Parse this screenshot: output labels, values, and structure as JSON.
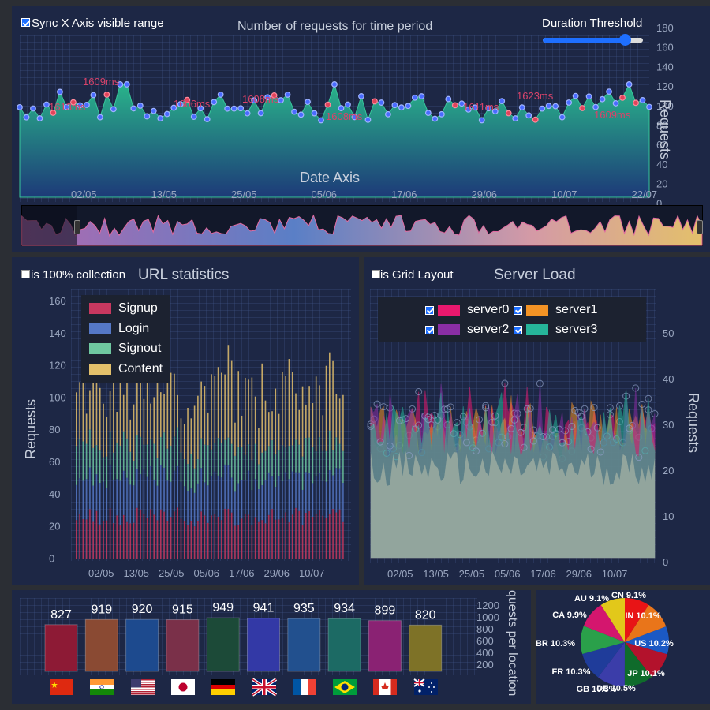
{
  "top": {
    "sync_label": "Sync X Axis visible range",
    "title": "Number of requests for time period",
    "threshold_label": "Duration Threshold",
    "threshold_value": 0.82,
    "yaxis_title": "Requests",
    "yticks": [
      "180",
      "160",
      "140",
      "120",
      "100",
      "80",
      "60",
      "40",
      "20",
      "0"
    ],
    "xaxis_title": "Date Axis",
    "xticks": [
      "02/05",
      "13/05",
      "25/05",
      "05/06",
      "17/06",
      "29/06",
      "10/07",
      "22/07"
    ],
    "annotations": [
      "1609ms",
      "1613ms",
      "1606ms",
      "1608ms",
      "1608ms",
      "1611ms",
      "1623ms",
      "1609ms"
    ]
  },
  "url": {
    "checkbox_label": "is 100% collection",
    "title": "URL statistics",
    "yaxis_title": "Requests",
    "yticks": [
      "160",
      "140",
      "120",
      "100",
      "80",
      "60",
      "40",
      "20",
      "0"
    ],
    "xticks": [
      "02/05",
      "13/05",
      "25/05",
      "05/06",
      "17/06",
      "29/06",
      "10/07"
    ],
    "legend": [
      {
        "label": "Signup",
        "color": "#c8385f"
      },
      {
        "label": "Login",
        "color": "#5578c6"
      },
      {
        "label": "Signout",
        "color": "#6fc8a0"
      },
      {
        "label": "Content",
        "color": "#e3c06b"
      }
    ]
  },
  "server": {
    "checkbox_label": "is Grid Layout",
    "title": "Server Load",
    "yaxis_title": "Requests",
    "yticks": [
      "50",
      "40",
      "30",
      "20",
      "10",
      "0"
    ],
    "xticks": [
      "02/05",
      "13/05",
      "25/05",
      "05/06",
      "17/06",
      "29/06",
      "10/07"
    ],
    "legend": [
      {
        "label": "server0",
        "color": "#e9186e"
      },
      {
        "label": "server1",
        "color": "#f39325"
      },
      {
        "label": "server2",
        "color": "#8a2ea5"
      },
      {
        "label": "server3",
        "color": "#26b59a"
      }
    ]
  },
  "location": {
    "yaxis_title": "quests per location",
    "yticks": [
      "1200",
      "1000",
      "800",
      "600",
      "400",
      "200"
    ],
    "bars": [
      {
        "value": 827,
        "color": "#8d1a35",
        "flag": "CN"
      },
      {
        "value": 919,
        "color": "#8a4a33",
        "flag": "IN"
      },
      {
        "value": 920,
        "color": "#1d4a8e",
        "flag": "US"
      },
      {
        "value": 915,
        "color": "#7a3049",
        "flag": "JP"
      },
      {
        "value": 949,
        "color": "#1c4a38",
        "flag": "DE"
      },
      {
        "value": 941,
        "color": "#3339a6",
        "flag": "GB"
      },
      {
        "value": 935,
        "color": "#22508e",
        "flag": "FR"
      },
      {
        "value": 934,
        "color": "#1c6a64",
        "flag": "BR"
      },
      {
        "value": 899,
        "color": "#8a2273",
        "flag": "CA"
      },
      {
        "value": 820,
        "color": "#7e7227",
        "flag": "AU"
      }
    ]
  },
  "pie": {
    "slices": [
      {
        "label": "CN 9.1%",
        "value": 9.1,
        "color": "#e81416"
      },
      {
        "label": "IN 10.1%",
        "value": 10.1,
        "color": "#e9751a"
      },
      {
        "label": "US 10.2%",
        "value": 10.2,
        "color": "#1b59c4"
      },
      {
        "label": "JP 10.1%",
        "value": 10.1,
        "color": "#b3122c"
      },
      {
        "label": "DE 10.5%",
        "value": 10.5,
        "color": "#0f6b2b"
      },
      {
        "label": "GB 10.3%",
        "value": 10.3,
        "color": "#3b3da9"
      },
      {
        "label": "FR 10.3%",
        "value": 10.3,
        "color": "#1f3c9a"
      },
      {
        "label": "BR 10.3%",
        "value": 10.3,
        "color": "#2aa04a"
      },
      {
        "label": "CA 9.9%",
        "value": 9.9,
        "color": "#d4166e"
      },
      {
        "label": "AU 9.1%",
        "value": 9.1,
        "color": "#e2c81a"
      }
    ]
  }
}
